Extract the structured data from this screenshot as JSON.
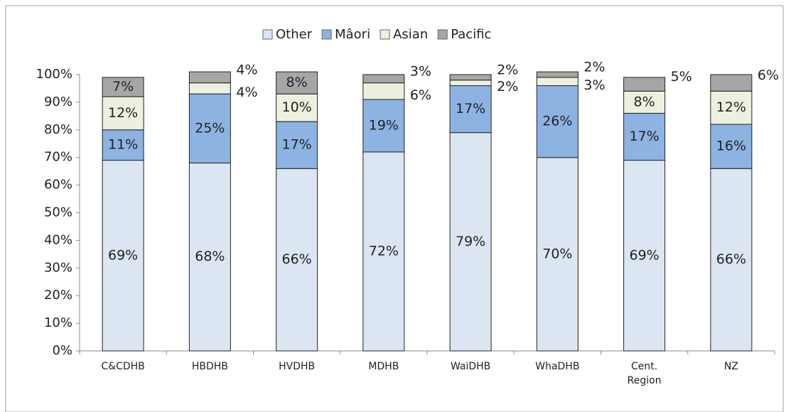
{
  "chart_data": {
    "type": "stacked_bar",
    "categories": [
      "C&CDHB",
      "HBDHB",
      "HVDHB",
      "MDHB",
      "WaiDHB",
      "WhaDHB",
      "Cent. Region",
      "NZ"
    ],
    "series": [
      {
        "name": "Other",
        "color": "#dce6f2",
        "values": [
          69,
          68,
          66,
          72,
          79,
          70,
          69,
          66
        ],
        "value_labels": [
          "69%",
          "68%",
          "66%",
          "72%",
          "79%",
          "70%",
          "69%",
          "66%"
        ]
      },
      {
        "name": "Mâori",
        "color": "#8db3e2",
        "values": [
          11,
          25,
          17,
          19,
          17,
          26,
          17,
          16
        ],
        "value_labels": [
          "11%",
          "25%",
          "17%",
          "19%",
          "17%",
          "26%",
          "17%",
          "16%"
        ]
      },
      {
        "name": "Asian",
        "color": "#ebf1de",
        "values": [
          12,
          4,
          10,
          6,
          2,
          3,
          8,
          12
        ],
        "value_labels": [
          "12%",
          "4%",
          "10%",
          "6%",
          "2%",
          "3%",
          "8%",
          "12%"
        ]
      },
      {
        "name": "Pacific",
        "color": "#a6a6a6",
        "values": [
          7,
          4,
          8,
          3,
          2,
          2,
          5,
          6
        ],
        "value_labels": [
          "7%",
          "4%",
          "8%",
          "3%",
          "2%",
          "2%",
          "5%",
          "6%"
        ]
      }
    ],
    "ylim": [
      0,
      100
    ],
    "yticks": [
      {
        "value": 0,
        "label": "0%"
      },
      {
        "value": 10,
        "label": "10%"
      },
      {
        "value": 20,
        "label": "20%"
      },
      {
        "value": 30,
        "label": "30%"
      },
      {
        "value": 40,
        "label": "40%"
      },
      {
        "value": 50,
        "label": "50%"
      },
      {
        "value": 60,
        "label": "60%"
      },
      {
        "value": 70,
        "label": "70%"
      },
      {
        "value": 80,
        "label": "80%"
      },
      {
        "value": 90,
        "label": "90%"
      },
      {
        "value": 100,
        "label": "100%"
      }
    ],
    "legend": "top"
  }
}
